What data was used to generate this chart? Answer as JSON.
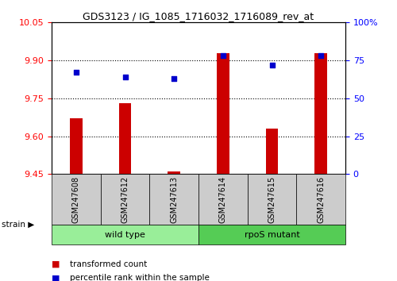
{
  "title": "GDS3123 / IG_1085_1716032_1716089_rev_at",
  "samples": [
    "GSM247608",
    "GSM247612",
    "GSM247613",
    "GSM247614",
    "GSM247615",
    "GSM247616"
  ],
  "transformed_count": [
    9.67,
    9.73,
    9.46,
    9.93,
    9.63,
    9.93
  ],
  "percentile_rank": [
    67,
    64,
    63,
    78,
    72,
    78
  ],
  "groups": [
    {
      "label": "wild type",
      "indices": [
        0,
        1,
        2
      ],
      "color": "#99ee99"
    },
    {
      "label": "rpoS mutant",
      "indices": [
        3,
        4,
        5
      ],
      "color": "#55cc55"
    }
  ],
  "factor_label": "strain",
  "ylim_left": [
    9.45,
    10.05
  ],
  "ylim_right": [
    0,
    100
  ],
  "yticks_left": [
    9.45,
    9.6,
    9.75,
    9.9,
    10.05
  ],
  "yticks_right": [
    0,
    25,
    50,
    75,
    100
  ],
  "ytick_right_labels": [
    "0",
    "25",
    "50",
    "75",
    "100%"
  ],
  "bar_color": "#cc0000",
  "dot_color": "#0000cc",
  "bar_width": 0.25,
  "background_color": "#ffffff",
  "plot_bg_color": "#ffffff",
  "sample_bg_color": "#cccccc",
  "legend_items": [
    {
      "label": "transformed count",
      "color": "#cc0000"
    },
    {
      "label": "percentile rank within the sample",
      "color": "#0000cc"
    }
  ]
}
